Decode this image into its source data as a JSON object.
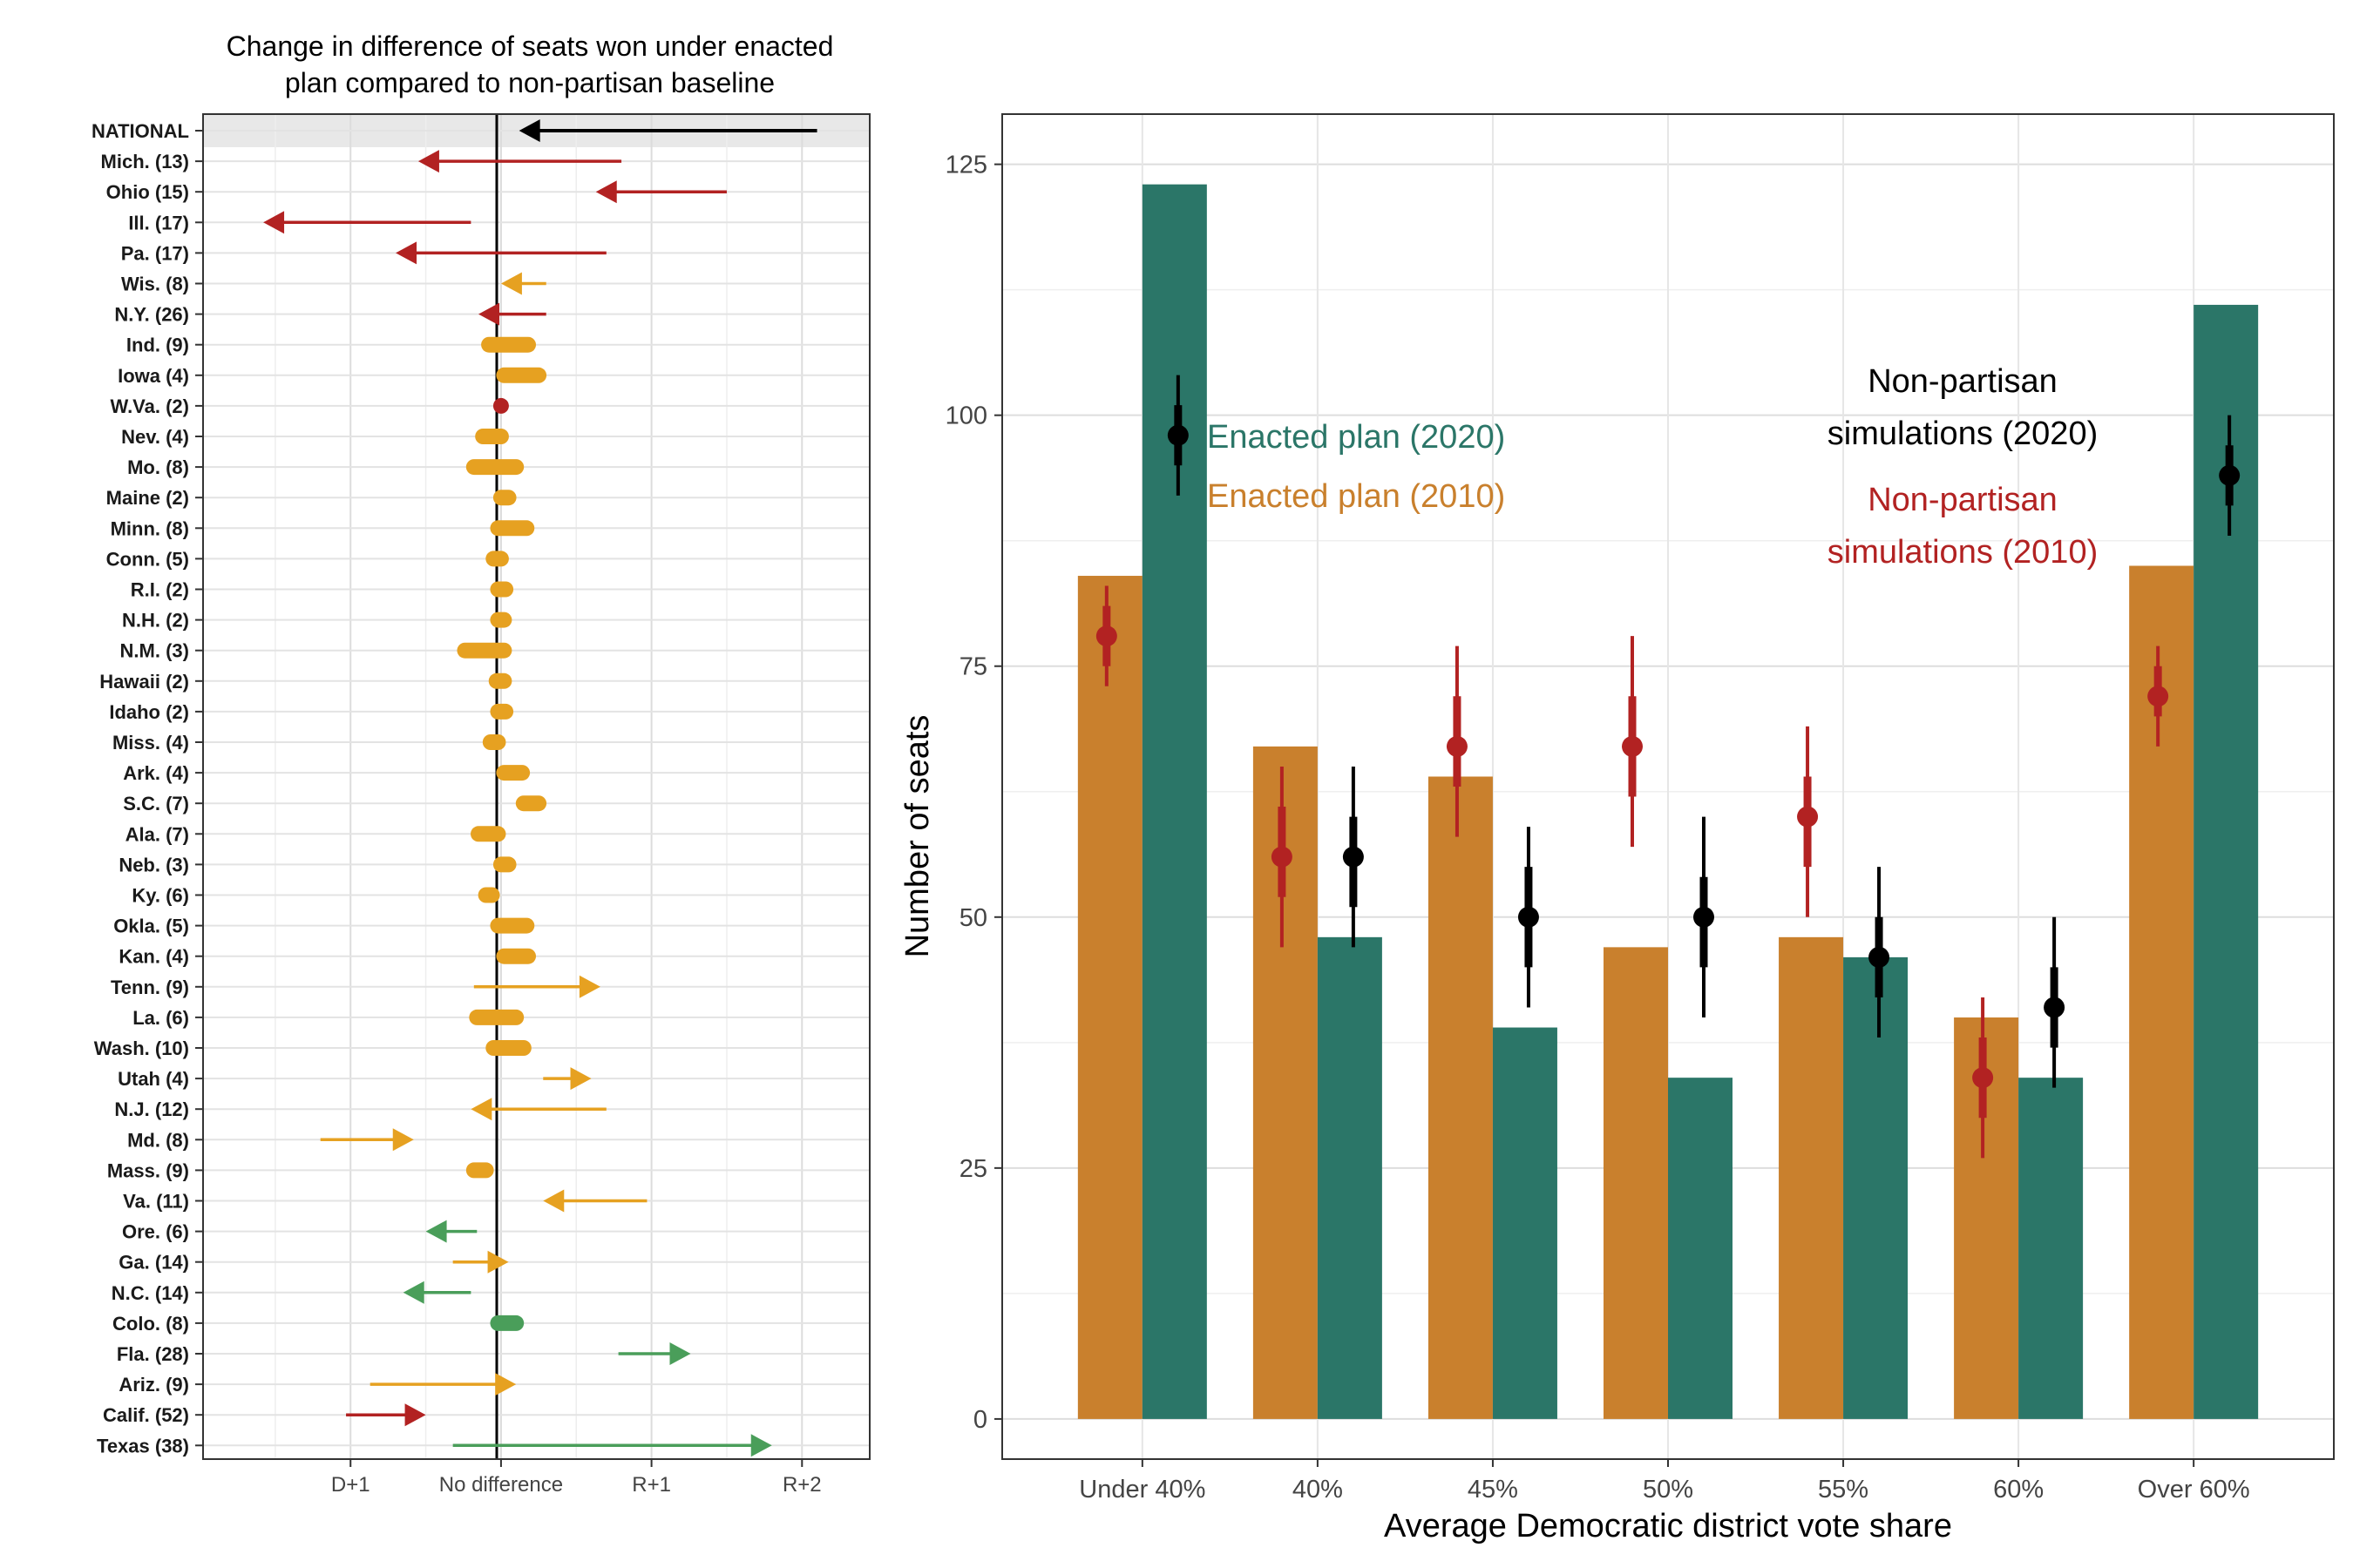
{
  "chart_data": [
    {
      "type": "arrow",
      "title": "Change in difference of seats won under enacted plan compared to non-partisan baseline",
      "x_ticks": [
        "D+1",
        "No difference",
        "R+1",
        "R+2"
      ],
      "x_tick_values": [
        -1,
        0,
        1,
        2
      ],
      "xlim": [
        -1.98,
        2.45
      ],
      "grid": true,
      "colors": {
        "black": "#000000",
        "red": "#b22222",
        "orange": "#e6a121",
        "green": "#4a9e5a"
      },
      "rows": [
        {
          "label": "NATIONAL",
          "from": 2.1,
          "to": 0.12,
          "color": "black",
          "arrow": true,
          "highlight": true
        },
        {
          "label": "Mich. (13)",
          "from": 0.8,
          "to": -0.55,
          "color": "red",
          "arrow": true
        },
        {
          "label": "Ohio (15)",
          "from": 1.5,
          "to": 0.63,
          "color": "red",
          "arrow": true
        },
        {
          "label": "Ill. (17)",
          "from": -0.2,
          "to": -1.58,
          "color": "red",
          "arrow": true
        },
        {
          "label": "Pa. (17)",
          "from": 0.7,
          "to": -0.7,
          "color": "red",
          "arrow": true
        },
        {
          "label": "Wis. (8)",
          "from": 0.3,
          "to": 0.0,
          "color": "orange",
          "arrow": true
        },
        {
          "label": "N.Y. (26)",
          "from": 0.3,
          "to": -0.15,
          "color": "red",
          "arrow": true
        },
        {
          "label": "Ind. (9)",
          "from": -0.08,
          "to": 0.18,
          "color": "orange",
          "arrow": false
        },
        {
          "label": "Iowa (4)",
          "from": 0.02,
          "to": 0.25,
          "color": "orange",
          "arrow": false
        },
        {
          "label": "W.Va. (2)",
          "from": 0.0,
          "to": 0.0,
          "color": "red",
          "arrow": false
        },
        {
          "label": "Nev. (4)",
          "from": -0.12,
          "to": 0.0,
          "color": "orange",
          "arrow": false
        },
        {
          "label": "Mo. (8)",
          "from": -0.18,
          "to": 0.1,
          "color": "orange",
          "arrow": false
        },
        {
          "label": "Maine (2)",
          "from": 0.0,
          "to": 0.05,
          "color": "orange",
          "arrow": false
        },
        {
          "label": "Minn. (8)",
          "from": -0.02,
          "to": 0.17,
          "color": "orange",
          "arrow": false
        },
        {
          "label": "Conn. (5)",
          "from": -0.05,
          "to": 0.0,
          "color": "orange",
          "arrow": false
        },
        {
          "label": "R.I. (2)",
          "from": -0.02,
          "to": 0.03,
          "color": "orange",
          "arrow": false
        },
        {
          "label": "N.H. (2)",
          "from": -0.02,
          "to": 0.02,
          "color": "orange",
          "arrow": false
        },
        {
          "label": "N.M. (3)",
          "from": -0.24,
          "to": 0.02,
          "color": "orange",
          "arrow": false
        },
        {
          "label": "Hawaii (2)",
          "from": -0.03,
          "to": 0.02,
          "color": "orange",
          "arrow": false
        },
        {
          "label": "Idaho (2)",
          "from": -0.02,
          "to": 0.03,
          "color": "orange",
          "arrow": false
        },
        {
          "label": "Miss. (4)",
          "from": -0.07,
          "to": -0.02,
          "color": "orange",
          "arrow": false
        },
        {
          "label": "Ark. (4)",
          "from": 0.02,
          "to": 0.14,
          "color": "orange",
          "arrow": false
        },
        {
          "label": "S.C. (7)",
          "from": 0.15,
          "to": 0.25,
          "color": "orange",
          "arrow": false
        },
        {
          "label": "Ala. (7)",
          "from": -0.15,
          "to": -0.02,
          "color": "orange",
          "arrow": false
        },
        {
          "label": "Neb. (3)",
          "from": 0.0,
          "to": 0.05,
          "color": "orange",
          "arrow": false
        },
        {
          "label": "Ky. (6)",
          "from": -0.1,
          "to": -0.06,
          "color": "orange",
          "arrow": false
        },
        {
          "label": "Okla. (5)",
          "from": -0.02,
          "to": 0.17,
          "color": "orange",
          "arrow": false
        },
        {
          "label": "Kan. (4)",
          "from": 0.02,
          "to": 0.18,
          "color": "orange",
          "arrow": false
        },
        {
          "label": "Tenn. (9)",
          "from": -0.18,
          "to": 0.66,
          "color": "orange",
          "arrow": true
        },
        {
          "label": "La. (6)",
          "from": -0.16,
          "to": 0.1,
          "color": "orange",
          "arrow": false
        },
        {
          "label": "Wash. (10)",
          "from": -0.05,
          "to": 0.15,
          "color": "orange",
          "arrow": false
        },
        {
          "label": "Utah (4)",
          "from": 0.28,
          "to": 0.6,
          "color": "orange",
          "arrow": true
        },
        {
          "label": "N.J. (12)",
          "from": 0.7,
          "to": -0.2,
          "color": "orange",
          "arrow": true
        },
        {
          "label": "Md. (8)",
          "from": -1.2,
          "to": -0.58,
          "color": "orange",
          "arrow": true
        },
        {
          "label": "Mass. (9)",
          "from": -0.18,
          "to": -0.1,
          "color": "orange",
          "arrow": false
        },
        {
          "label": "Va. (11)",
          "from": 0.97,
          "to": 0.28,
          "color": "orange",
          "arrow": true
        },
        {
          "label": "Ore. (6)",
          "from": -0.16,
          "to": -0.5,
          "color": "green",
          "arrow": true
        },
        {
          "label": "Ga. (14)",
          "from": -0.32,
          "to": 0.05,
          "color": "orange",
          "arrow": true
        },
        {
          "label": "N.C. (14)",
          "from": -0.2,
          "to": -0.65,
          "color": "green",
          "arrow": true
        },
        {
          "label": "Colo. (8)",
          "from": -0.02,
          "to": 0.1,
          "color": "green",
          "arrow": false
        },
        {
          "label": "Fla. (28)",
          "from": 0.78,
          "to": 1.26,
          "color": "green",
          "arrow": true
        },
        {
          "label": "Ariz. (9)",
          "from": -0.87,
          "to": 0.1,
          "color": "orange",
          "arrow": true
        },
        {
          "label": "Calif. (52)",
          "from": -1.03,
          "to": -0.5,
          "color": "red",
          "arrow": true
        },
        {
          "label": "Texas (38)",
          "from": -0.32,
          "to": 1.8,
          "color": "green",
          "arrow": true
        }
      ]
    },
    {
      "type": "bar",
      "categories": [
        "Under 40%",
        "40%",
        "45%",
        "50%",
        "55%",
        "60%",
        "Over 60%"
      ],
      "xlabel": "Average Democratic district vote share",
      "ylabel": "Number of seats",
      "ylim": [
        -4,
        130
      ],
      "y_ticks": [
        0,
        25,
        50,
        75,
        100,
        125
      ],
      "grid": true,
      "series": [
        {
          "name": "Enacted plan (2010)",
          "color": "#c9802d",
          "values": [
            84,
            67,
            64,
            47,
            48,
            40,
            85
          ]
        },
        {
          "name": "Enacted plan (2020)",
          "color": "#2b7668",
          "values": [
            123,
            48,
            39,
            34,
            46,
            34,
            111
          ]
        }
      ],
      "points": [
        {
          "name": "Non-partisan simulations (2010)",
          "color": "#b22222",
          "values": [
            78,
            56,
            67,
            67,
            60,
            34,
            72
          ],
          "inner": [
            [
              75,
              81
            ],
            [
              52,
              61
            ],
            [
              63,
              72
            ],
            [
              62,
              72
            ],
            [
              55,
              64
            ],
            [
              30,
              38
            ],
            [
              70,
              75
            ]
          ],
          "outer": [
            [
              73,
              83
            ],
            [
              47,
              65
            ],
            [
              58,
              77
            ],
            [
              57,
              78
            ],
            [
              50,
              69
            ],
            [
              26,
              42
            ],
            [
              67,
              77
            ]
          ]
        },
        {
          "name": "Non-partisan simulations (2020)",
          "color": "#000000",
          "values": [
            98,
            56,
            50,
            50,
            46,
            41,
            94
          ],
          "inner": [
            [
              95,
              101
            ],
            [
              51,
              60
            ],
            [
              45,
              55
            ],
            [
              45,
              54
            ],
            [
              42,
              50
            ],
            [
              37,
              45
            ],
            [
              91,
              97
            ]
          ],
          "outer": [
            [
              92,
              104
            ],
            [
              47,
              65
            ],
            [
              41,
              59
            ],
            [
              40,
              60
            ],
            [
              38,
              55
            ],
            [
              33,
              50
            ],
            [
              88,
              100
            ]
          ]
        }
      ],
      "legend": {
        "enacted_2020": "Enacted plan (2020)",
        "enacted_2010": "Enacted plan (2010)",
        "sim_2020_line1": "Non-partisan",
        "sim_2020_line2": "simulations (2020)",
        "sim_2010_line1": "Non-partisan",
        "sim_2010_line2": "simulations (2010)"
      }
    }
  ]
}
